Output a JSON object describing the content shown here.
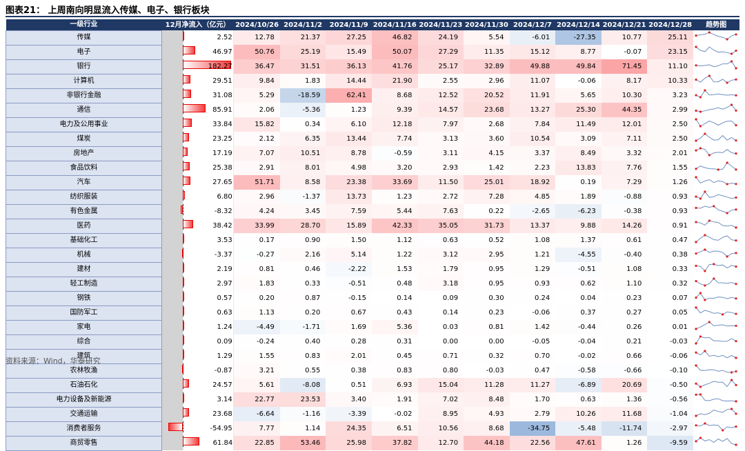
{
  "title": "图表21：  上周南向明显流入传媒、电子、银行板块",
  "source": "资料来源：Wind，华泰研究",
  "chart_data": {
    "type": "table",
    "columns": [
      "一级行业",
      "12月净流入（亿元）",
      "2024/10/26",
      "2024/11/2",
      "2024/11/9",
      "2024/11/16",
      "2024/11/23",
      "2024/11/30",
      "2024/12/7",
      "2024/12/14",
      "2024/12/21",
      "2024/12/28",
      "趋势图"
    ],
    "rows": [
      {
        "industry": "传媒",
        "flow": 2.52,
        "weekly": [
          12.78,
          21.37,
          27.25,
          46.82,
          24.19,
          5.54,
          -6.01,
          -27.35,
          10.77,
          25.11
        ]
      },
      {
        "industry": "电子",
        "flow": 46.97,
        "weekly": [
          50.76,
          25.19,
          15.49,
          50.07,
          27.29,
          11.35,
          15.12,
          8.77,
          -0.07,
          23.15
        ]
      },
      {
        "industry": "银行",
        "flow": 182.27,
        "weekly": [
          36.47,
          31.51,
          36.13,
          41.76,
          25.17,
          32.89,
          49.88,
          49.84,
          71.45,
          11.1
        ]
      },
      {
        "industry": "计算机",
        "flow": 29.51,
        "weekly": [
          9.84,
          1.83,
          14.44,
          21.9,
          2.55,
          2.96,
          11.07,
          -0.06,
          8.17,
          10.33
        ]
      },
      {
        "industry": "非银行金融",
        "flow": 31.08,
        "weekly": [
          5.29,
          -18.59,
          62.41,
          8.68,
          12.52,
          20.52,
          11.91,
          5.65,
          10.3,
          3.23
        ]
      },
      {
        "industry": "通信",
        "flow": 85.91,
        "weekly": [
          2.06,
          -5.36,
          1.23,
          9.39,
          14.57,
          23.68,
          13.27,
          25.3,
          44.35,
          2.99
        ]
      },
      {
        "industry": "电力及公用事业",
        "flow": 33.84,
        "weekly": [
          15.82,
          0.34,
          6.1,
          12.18,
          7.97,
          2.68,
          7.84,
          11.49,
          12.01,
          2.5
        ]
      },
      {
        "industry": "煤炭",
        "flow": 23.25,
        "weekly": [
          2.12,
          6.35,
          13.44,
          7.74,
          3.13,
          3.6,
          10.54,
          3.09,
          7.11,
          2.5
        ]
      },
      {
        "industry": "房地产",
        "flow": 17.19,
        "weekly": [
          7.07,
          10.51,
          8.78,
          -0.59,
          3.11,
          4.15,
          3.37,
          8.49,
          3.32,
          2.01
        ]
      },
      {
        "industry": "食品饮料",
        "flow": 25.38,
        "weekly": [
          2.91,
          8.01,
          4.98,
          3.2,
          2.93,
          1.42,
          2.23,
          13.83,
          7.76,
          1.55
        ]
      },
      {
        "industry": "汽车",
        "flow": 27.65,
        "weekly": [
          51.71,
          8.58,
          23.38,
          33.69,
          11.5,
          25.01,
          18.92,
          0.19,
          7.29,
          1.26
        ]
      },
      {
        "industry": "纺织服装",
        "flow": 6.8,
        "weekly": [
          2.96,
          -1.37,
          13.73,
          1.23,
          2.72,
          7.28,
          4.85,
          1.89,
          -0.88,
          0.93
        ]
      },
      {
        "industry": "有色金属",
        "flow": -8.32,
        "weekly": [
          4.24,
          3.45,
          7.59,
          5.44,
          7.63,
          0.22,
          -2.65,
          -6.23,
          -0.38,
          0.93
        ]
      },
      {
        "industry": "医药",
        "flow": 38.42,
        "weekly": [
          33.99,
          28.7,
          15.89,
          42.33,
          35.05,
          31.73,
          13.37,
          9.88,
          14.26,
          0.91
        ]
      },
      {
        "industry": "基础化工",
        "flow": 3.53,
        "weekly": [
          0.17,
          0.9,
          1.5,
          1.12,
          0.63,
          0.52,
          1.08,
          1.37,
          0.61,
          0.47
        ]
      },
      {
        "industry": "机械",
        "flow": -3.37,
        "weekly": [
          -0.27,
          2.16,
          5.14,
          1.22,
          3.12,
          2.95,
          1.21,
          -4.55,
          -0.4,
          0.38
        ]
      },
      {
        "industry": "建材",
        "flow": 2.19,
        "weekly": [
          0.81,
          0.46,
          -2.22,
          1.53,
          1.79,
          0.95,
          1.29,
          -0.51,
          1.08,
          0.33
        ]
      },
      {
        "industry": "轻工制造",
        "flow": 2.97,
        "weekly": [
          1.83,
          0.33,
          -0.51,
          0.48,
          3.18,
          0.95,
          0.93,
          0.62,
          1.1,
          0.32
        ]
      },
      {
        "industry": "钢铁",
        "flow": 0.57,
        "weekly": [
          0.2,
          0.87,
          -0.15,
          0.14,
          0.09,
          0.3,
          0.24,
          0.04,
          0.23,
          0.07
        ]
      },
      {
        "industry": "国防军工",
        "flow": 0.63,
        "weekly": [
          1.13,
          0.2,
          0.67,
          0.43,
          0.14,
          0.23,
          -0.06,
          0.37,
          0.27,
          0.05
        ]
      },
      {
        "industry": "家电",
        "flow": 1.24,
        "weekly": [
          -4.49,
          -1.71,
          1.69,
          5.36,
          0.03,
          0.81,
          1.42,
          -0.44,
          0.26,
          0.01
        ]
      },
      {
        "industry": "综合",
        "flow": 0.09,
        "weekly": [
          -0.24,
          0.4,
          0.28,
          0.31,
          0.0,
          0.0,
          -0.05,
          -0.04,
          0.21,
          -0.03
        ]
      },
      {
        "industry": "建筑",
        "flow": 1.29,
        "weekly": [
          1.55,
          0.83,
          2.01,
          0.45,
          0.71,
          0.32,
          0.7,
          -0.02,
          0.66,
          -0.06
        ]
      },
      {
        "industry": "农林牧渔",
        "flow": -0.87,
        "weekly": [
          3.21,
          0.55,
          0.38,
          0.83,
          0.8,
          -0.03,
          0.47,
          -0.58,
          -0.66,
          -0.1
        ]
      },
      {
        "industry": "石油石化",
        "flow": 24.57,
        "weekly": [
          5.61,
          -8.08,
          0.51,
          6.93,
          15.04,
          11.28,
          11.27,
          -6.89,
          20.69,
          -0.5
        ]
      },
      {
        "industry": "电力设备及新能源",
        "flow": 3.14,
        "weekly": [
          22.77,
          23.53,
          3.4,
          1.91,
          7.02,
          8.48,
          1.7,
          0.63,
          1.36,
          -0.56
        ]
      },
      {
        "industry": "交通运输",
        "flow": 23.68,
        "weekly": [
          -6.64,
          -1.16,
          -3.39,
          -0.02,
          8.95,
          4.93,
          2.79,
          10.26,
          11.68,
          -1.04
        ]
      },
      {
        "industry": "消费者服务",
        "flow": -54.95,
        "weekly": [
          7.77,
          1.14,
          24.35,
          6.51,
          10.56,
          8.68,
          -34.75,
          -5.48,
          -11.74,
          -2.97
        ]
      },
      {
        "industry": "商贸零售",
        "flow": 61.84,
        "weekly": [
          22.85,
          53.46,
          25.98,
          37.82,
          12.7,
          44.18,
          22.56,
          47.61,
          1.26,
          -9.59
        ]
      }
    ],
    "colors": {
      "positive": "#f8696b",
      "negative": "#5a8ac6",
      "header": "#1f3864",
      "bar": "#f23b3b",
      "sparkline": "#6f8fbf",
      "marker": "#e02020"
    }
  }
}
